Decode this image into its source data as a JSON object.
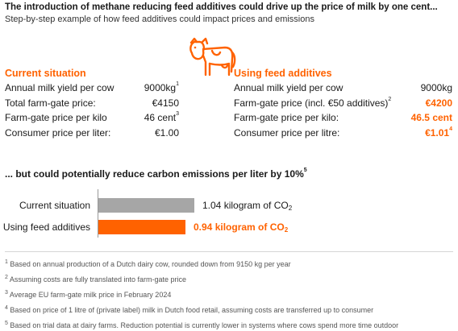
{
  "title": "The introduction of methane reducing feed additives could drive up the price of milk by one cent...",
  "subtitle": "Step-by-step example of how feed additives could impact prices and emissions",
  "icon": "cow-icon",
  "colors": {
    "accent": "#ff6200",
    "gray_bar": "#a6a6a6"
  },
  "current": {
    "heading": "Current situation",
    "rows": [
      {
        "label": "Annual milk yield per cow",
        "value": "9000kg",
        "sup": "1"
      },
      {
        "label": "Total farm-gate price:",
        "value": "€4150",
        "sup": ""
      },
      {
        "label": "Farm-gate price per kilo",
        "value": "46 cent",
        "sup": "3"
      },
      {
        "label": "Consumer price per liter:",
        "value": "€1.00",
        "sup": ""
      }
    ]
  },
  "additives": {
    "heading": "Using feed additives",
    "rows": [
      {
        "label": "Annual milk yield per cow",
        "label_sup": "",
        "value": "9000kg",
        "sup": ""
      },
      {
        "label": "Farm-gate price (incl. €50 additives)",
        "label_sup": "2",
        "value": "€4200",
        "sup": ""
      },
      {
        "label": "Farm-gate price per kilo:",
        "label_sup": "",
        "value": "46.5 cent",
        "sup": ""
      },
      {
        "label": "Consumer price per litre:",
        "label_sup": "",
        "value": "€1.01",
        "sup": "4"
      }
    ]
  },
  "section2": {
    "title": "... but could potentially reduce carbon emissions per liter by 10%",
    "sup": "5"
  },
  "chart_data": {
    "type": "bar",
    "orientation": "horizontal",
    "categories": [
      "Current situation",
      "Using feed additives"
    ],
    "values": [
      1.04,
      0.94
    ],
    "value_labels": [
      "1.04 kilogram of CO",
      "0.94 kilogram of CO"
    ],
    "unit_subscript": "2",
    "colors": [
      "#a6a6a6",
      "#ff6200"
    ],
    "xlim": [
      0,
      1.04
    ]
  },
  "footnotes": [
    {
      "n": "1",
      "text": "Based on annual production of a Dutch dairy cow, rounded down from 9150 kg per year"
    },
    {
      "n": "2",
      "text": "Assuming costs are fully translated into farm-gate price"
    },
    {
      "n": "3",
      "text": "Average EU farm-gate milk price in February 2024"
    },
    {
      "n": "4",
      "text": "Based on price of 1 litre of (private label) milk in Dutch food retail, assuming costs are transferred up to consumer"
    },
    {
      "n": "5",
      "text": "Based on trial data at dairy farms. Reduction potential is currently lower in systems where cows spend more time outdoor"
    }
  ]
}
